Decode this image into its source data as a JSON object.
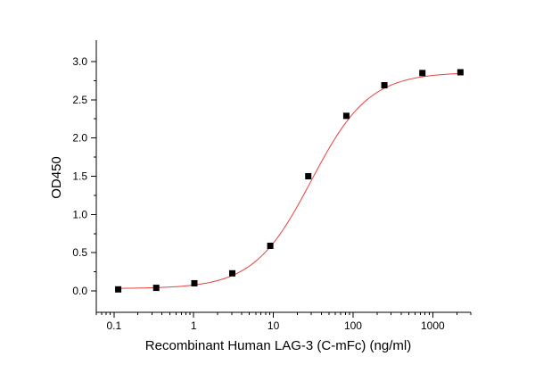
{
  "chart_data": {
    "type": "scatter",
    "title": "",
    "xlabel": "Recombinant Human LAG-3 (C-mFc) (ng/ml)",
    "ylabel": "OD450",
    "x_scale": "log",
    "xlim": [
      0.06,
      3000
    ],
    "ylim": [
      -0.28,
      3.28
    ],
    "x_ticks": [
      0.1,
      1,
      10,
      100,
      1000
    ],
    "x_tick_labels": [
      "0.1",
      "1",
      "10",
      "100",
      "1000"
    ],
    "y_ticks": [
      0.0,
      0.5,
      1.0,
      1.5,
      2.0,
      2.5,
      3.0
    ],
    "y_tick_labels": [
      "0.0",
      "0.5",
      "1.0",
      "1.5",
      "2.0",
      "2.5",
      "3.0"
    ],
    "grid": false,
    "legend": "none",
    "series": [
      {
        "marker": "square",
        "color": "#000000",
        "x": [
          0.113,
          0.339,
          1.02,
          3.05,
          9.14,
          27.4,
          82.3,
          247,
          741,
          2222
        ],
        "y": [
          0.02,
          0.04,
          0.1,
          0.23,
          0.59,
          1.5,
          2.29,
          2.69,
          2.85,
          2.86
        ]
      }
    ],
    "fit_curve": {
      "model": "4PL",
      "color": "#e8413c",
      "bottom": 0.03,
      "top": 2.86,
      "ec50": 30,
      "hill": 1.2
    }
  }
}
